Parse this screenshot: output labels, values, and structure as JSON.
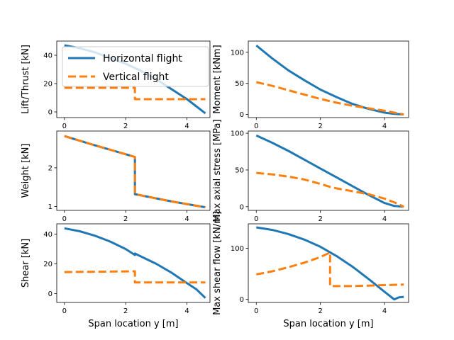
{
  "colors": {
    "horizontal": "#1f77b4",
    "vertical": "#ff7f0e"
  },
  "legend": {
    "placement": "top-right of first panel",
    "entries": [
      {
        "label": "Horizontal flight",
        "style": "solid",
        "color": "#1f77b4"
      },
      {
        "label": "Vertical flight",
        "style": "dashed",
        "color": "#ff7f0e"
      }
    ]
  },
  "chart_data": [
    {
      "id": "lift",
      "type": "line",
      "xlabel": "",
      "ylabel": "Lift/Thrust [kN]",
      "xlim": [
        -0.25,
        4.75
      ],
      "ylim": [
        -4,
        50
      ],
      "xticks": [
        0,
        2,
        4
      ],
      "yticks": [
        0,
        20,
        40
      ],
      "series": [
        {
          "name": "Horizontal flight",
          "style": "solid",
          "x": [
            0,
            0.5,
            1,
            1.5,
            2,
            2.5,
            3,
            3.5,
            4,
            4.3,
            4.6
          ],
          "y": [
            47,
            45,
            42,
            38,
            34,
            29,
            23,
            16,
            9,
            4,
            -1
          ]
        },
        {
          "name": "Vertical flight",
          "style": "dashed",
          "x": [
            0,
            2.3,
            2.3,
            4.6
          ],
          "y": [
            17,
            17,
            9,
            9
          ]
        }
      ]
    },
    {
      "id": "moment",
      "type": "line",
      "xlabel": "",
      "ylabel": "Moment [kNm]",
      "xlim": [
        -0.25,
        4.75
      ],
      "ylim": [
        -5,
        118
      ],
      "xticks": [
        0,
        2,
        4
      ],
      "yticks": [
        0,
        50,
        100
      ],
      "series": [
        {
          "name": "Horizontal flight",
          "style": "solid",
          "x": [
            0,
            0.5,
            1,
            1.5,
            2,
            2.5,
            3,
            3.5,
            4,
            4.3,
            4.6
          ],
          "y": [
            111,
            90,
            71,
            55,
            40,
            28,
            17,
            9,
            3,
            1,
            0
          ]
        },
        {
          "name": "Vertical flight",
          "style": "dashed",
          "x": [
            0,
            0.5,
            1,
            1.5,
            2,
            2.5,
            3,
            3.5,
            4,
            4.3,
            4.6
          ],
          "y": [
            52,
            46,
            39,
            32,
            25,
            19,
            14,
            10,
            6,
            3,
            0
          ]
        }
      ]
    },
    {
      "id": "weight",
      "type": "line",
      "xlabel": "",
      "ylabel": "Weight [kN]",
      "xlim": [
        -0.25,
        4.75
      ],
      "ylim": [
        0.9,
        2.95
      ],
      "xticks": [
        0,
        2,
        4
      ],
      "yticks": [
        1,
        2
      ],
      "series": [
        {
          "name": "Horizontal flight",
          "style": "solid",
          "x": [
            0,
            1,
            2.3,
            2.3,
            3.5,
            4.6
          ],
          "y": [
            2.82,
            2.58,
            2.28,
            1.32,
            1.13,
            0.98
          ]
        },
        {
          "name": "Vertical flight",
          "style": "dashed",
          "x": [
            0,
            1,
            2.3,
            2.3,
            3.5,
            4.6
          ],
          "y": [
            2.82,
            2.58,
            2.28,
            1.32,
            1.13,
            0.98
          ]
        }
      ]
    },
    {
      "id": "stress",
      "type": "line",
      "xlabel": "",
      "ylabel": "Max axial stress [MPa]",
      "xlim": [
        -0.25,
        4.75
      ],
      "ylim": [
        -5,
        103
      ],
      "xticks": [
        0,
        2,
        4
      ],
      "yticks": [
        0,
        50,
        100
      ],
      "series": [
        {
          "name": "Horizontal flight",
          "style": "solid",
          "x": [
            0,
            0.5,
            1,
            1.5,
            2,
            2.5,
            3,
            3.5,
            4,
            4.3,
            4.6
          ],
          "y": [
            97,
            87,
            76,
            64,
            52,
            40,
            28,
            16,
            5,
            1,
            0
          ]
        },
        {
          "name": "Vertical flight",
          "style": "dashed",
          "x": [
            0,
            0.5,
            1,
            1.5,
            2,
            2.3,
            2.5,
            3,
            3.5,
            4,
            4.3,
            4.6
          ],
          "y": [
            46,
            44,
            41,
            37,
            31,
            27,
            25,
            21,
            17,
            11,
            6,
            0
          ]
        }
      ]
    },
    {
      "id": "shear",
      "type": "line",
      "xlabel": "Span location y [m]",
      "ylabel": "Shear [kN]",
      "xlim": [
        -0.25,
        4.75
      ],
      "ylim": [
        -6,
        47
      ],
      "xticks": [
        0,
        2,
        4
      ],
      "yticks": [
        0,
        20,
        40
      ],
      "series": [
        {
          "name": "Horizontal flight",
          "style": "solid",
          "x": [
            0,
            0.5,
            1,
            1.5,
            2,
            2.3,
            2.3,
            2.5,
            3,
            3.5,
            4,
            4.3,
            4.6
          ],
          "y": [
            44,
            42,
            39,
            35,
            30,
            26,
            27,
            25,
            20,
            14,
            7,
            3,
            -3
          ]
        },
        {
          "name": "Vertical flight",
          "style": "dashed",
          "x": [
            0,
            2.3,
            2.3,
            4.6
          ],
          "y": [
            14.5,
            15,
            7.5,
            7.5
          ]
        }
      ]
    },
    {
      "id": "shearflow",
      "type": "line",
      "xlabel": "Span location y [m]",
      "ylabel": "Max shear flow [kN/m]",
      "xlim": [
        -0.25,
        4.75
      ],
      "ylim": [
        -6,
        148
      ],
      "xticks": [
        0,
        2,
        4
      ],
      "yticks": [
        0,
        100
      ],
      "series": [
        {
          "name": "Horizontal flight",
          "style": "solid",
          "x": [
            0,
            0.5,
            1,
            1.5,
            2,
            2.5,
            3,
            3.5,
            4,
            4.3,
            4.45,
            4.6
          ],
          "y": [
            141,
            136,
            128,
            117,
            103,
            85,
            64,
            40,
            15,
            0,
            4,
            5
          ]
        },
        {
          "name": "Vertical flight",
          "style": "dashed",
          "x": [
            0,
            0.5,
            1,
            1.5,
            2,
            2.3,
            2.3,
            3,
            3.5,
            4,
            4.6
          ],
          "y": [
            49,
            55,
            63,
            72,
            83,
            92,
            26,
            26,
            27,
            28,
            29
          ]
        }
      ]
    }
  ]
}
